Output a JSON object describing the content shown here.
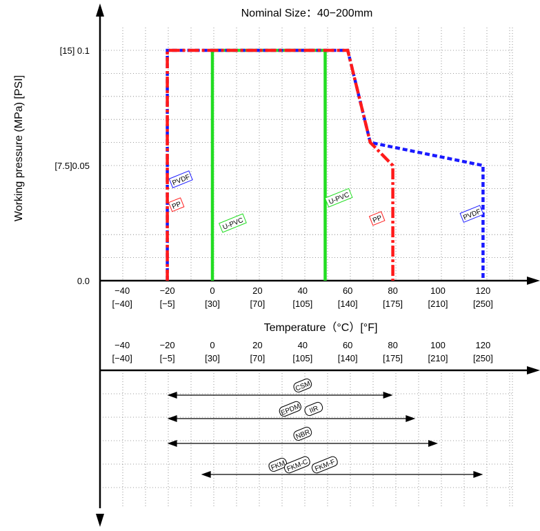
{
  "chart_data": [
    {
      "type": "line",
      "title": "Nominal Size：40−200mm",
      "xlabel": "Temperature（°C）[°F]",
      "ylabel": "Working pressure (MPa) [PSI]",
      "xlim": [
        -60,
        140
      ],
      "ylim": [
        0,
        0.11
      ],
      "x_ticks": [
        {
          "value": -40,
          "label": "−40",
          "sub": "[−40]"
        },
        {
          "value": -20,
          "label": "−20",
          "sub": "[−5]"
        },
        {
          "value": 0,
          "label": "0",
          "sub": "[30]"
        },
        {
          "value": 20,
          "label": "20",
          "sub": "[70]"
        },
        {
          "value": 40,
          "label": "40",
          "sub": "[105]"
        },
        {
          "value": 60,
          "label": "60",
          "sub": "[140]"
        },
        {
          "value": 80,
          "label": "80",
          "sub": "[175]"
        },
        {
          "value": 100,
          "label": "100",
          "sub": "[210]"
        },
        {
          "value": 120,
          "label": "120",
          "sub": "[250]"
        }
      ],
      "y_ticks": [
        {
          "value": 0,
          "label": "0.0"
        },
        {
          "value": 0.05,
          "label": "[7.5]0.05"
        },
        {
          "value": 0.1,
          "label": "[15]  0.1"
        }
      ],
      "grid": true,
      "series": [
        {
          "name": "PVDF",
          "color": "#1a1aff",
          "style": "dashed",
          "x": [
            -20,
            -20,
            60,
            70,
            120,
            120
          ],
          "y": [
            0,
            0.1,
            0.1,
            0.06,
            0.05,
            0
          ],
          "tag_points": [
            {
              "x": -14,
              "y": 0.044
            },
            {
              "x": 115,
              "y": 0.029
            }
          ]
        },
        {
          "name": "PP",
          "color": "#ff1a1a",
          "style": "dashdot",
          "x": [
            -20,
            -20,
            60,
            70,
            80,
            80
          ],
          "y": [
            0,
            0.1,
            0.1,
            0.06,
            0.05,
            0
          ],
          "tag_points": [
            {
              "x": -16,
              "y": 0.033
            },
            {
              "x": 73,
              "y": 0.027
            }
          ]
        },
        {
          "name": "U-PVC",
          "color": "#22dd22",
          "style": "solid",
          "x": [
            0,
            0,
            50,
            50
          ],
          "y": [
            0,
            0.1,
            0.1,
            0
          ],
          "tag_points": [
            {
              "x": 9,
              "y": 0.025
            },
            {
              "x": 56,
              "y": 0.036
            }
          ]
        }
      ]
    },
    {
      "type": "range",
      "xlim": [
        -60,
        140
      ],
      "x_ticks": [
        {
          "value": -40,
          "label": "−40",
          "sub": "[−40]"
        },
        {
          "value": -20,
          "label": "−20",
          "sub": "[−5]"
        },
        {
          "value": 0,
          "label": "0",
          "sub": "[30]"
        },
        {
          "value": 20,
          "label": "20",
          "sub": "[70]"
        },
        {
          "value": 40,
          "label": "40",
          "sub": "[105]"
        },
        {
          "value": 60,
          "label": "60",
          "sub": "[140]"
        },
        {
          "value": 80,
          "label": "80",
          "sub": "[175]"
        },
        {
          "value": 100,
          "label": "100",
          "sub": "[210]"
        },
        {
          "value": 120,
          "label": "120",
          "sub": "[250]"
        }
      ],
      "ranges": [
        {
          "labels": [
            "CSM"
          ],
          "min": -20,
          "max": 80
        },
        {
          "labels": [
            "EPDM",
            "IIR"
          ],
          "min": -20,
          "max": 90
        },
        {
          "labels": [
            "NBR"
          ],
          "min": -20,
          "max": 100
        },
        {
          "labels": [
            "FKM",
            "FKM-C",
            "FKM-F"
          ],
          "min": -5,
          "max": 120
        }
      ]
    }
  ]
}
